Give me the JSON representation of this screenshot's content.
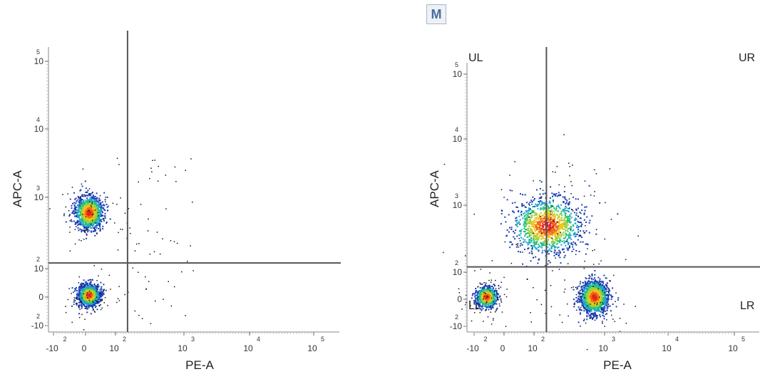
{
  "marker_button": "M",
  "colors": {
    "axis": "#444444",
    "gate": "#555555",
    "tick": "#999999"
  },
  "chart_data": [
    {
      "type": "scatter",
      "subtype": "flow-cytometry-density",
      "xlabel": "PE-A",
      "ylabel": "APC-A",
      "x_scale": "biexponential",
      "y_scale": "biexponential",
      "x_ticks": [
        {
          "base": "-10",
          "exp": "2",
          "value": -100
        },
        {
          "base": "0",
          "exp": "",
          "value": 0
        },
        {
          "base": "10",
          "exp": "2",
          "value": 100
        },
        {
          "base": "10",
          "exp": "3",
          "value": 1000
        },
        {
          "base": "10",
          "exp": "4",
          "value": 10000
        },
        {
          "base": "10",
          "exp": "5",
          "value": 100000
        }
      ],
      "y_ticks": [
        {
          "base": "-10",
          "exp": "2",
          "value": -100
        },
        {
          "base": "0",
          "exp": "",
          "value": 0
        },
        {
          "base": "10",
          "exp": "2",
          "value": 100
        },
        {
          "base": "10",
          "exp": "3",
          "value": 1000
        },
        {
          "base": "10",
          "exp": "4",
          "value": 10000
        },
        {
          "base": "10",
          "exp": "5",
          "value": 100000
        }
      ],
      "gate": {
        "x": 150,
        "y": 120
      },
      "populations": [
        {
          "x": 10,
          "y": 620,
          "density": "high",
          "spread": "medium"
        },
        {
          "x": 10,
          "y": 8,
          "density": "very high",
          "spread": "small"
        }
      ],
      "quadrant_labels": []
    },
    {
      "type": "scatter",
      "subtype": "flow-cytometry-density",
      "xlabel": "PE-A",
      "ylabel": "APC-A",
      "x_scale": "biexponential",
      "y_scale": "biexponential",
      "x_ticks": [
        {
          "base": "-10",
          "exp": "2",
          "value": -100
        },
        {
          "base": "0",
          "exp": "",
          "value": 0
        },
        {
          "base": "10",
          "exp": "2",
          "value": 100
        },
        {
          "base": "10",
          "exp": "3",
          "value": 1000
        },
        {
          "base": "10",
          "exp": "4",
          "value": 10000
        },
        {
          "base": "10",
          "exp": "5",
          "value": 100000
        }
      ],
      "y_ticks": [
        {
          "base": "-10",
          "exp": "2",
          "value": -100
        },
        {
          "base": "0",
          "exp": "",
          "value": 0
        },
        {
          "base": "10",
          "exp": "2",
          "value": 100
        },
        {
          "base": "10",
          "exp": "3",
          "value": 1000
        },
        {
          "base": "10",
          "exp": "4",
          "value": 10000
        },
        {
          "base": "10",
          "exp": "5",
          "value": 100000
        }
      ],
      "gate": {
        "x": 150,
        "y": 120
      },
      "populations": [
        {
          "x": 150,
          "y": 500,
          "density": "high",
          "spread": "large"
        },
        {
          "x": 700,
          "y": 10,
          "density": "very high",
          "spread": "medium"
        },
        {
          "x": -60,
          "y": 10,
          "density": "medium",
          "spread": "small"
        }
      ],
      "quadrant_labels": [
        "UL",
        "UR",
        "LL",
        "LR"
      ]
    }
  ]
}
